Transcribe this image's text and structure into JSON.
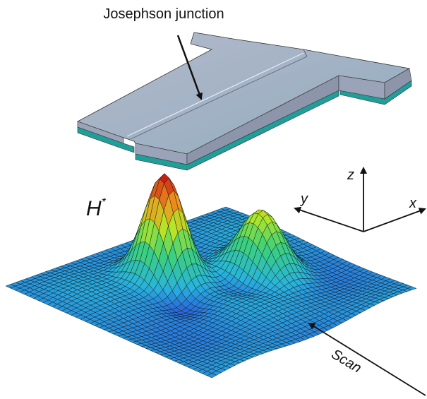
{
  "labels": {
    "junction": "Josephson junction",
    "field": "H",
    "field_superscript": "*",
    "axis_z": "z",
    "axis_y": "y",
    "axis_x": "x",
    "scan": "Scan"
  }
}
